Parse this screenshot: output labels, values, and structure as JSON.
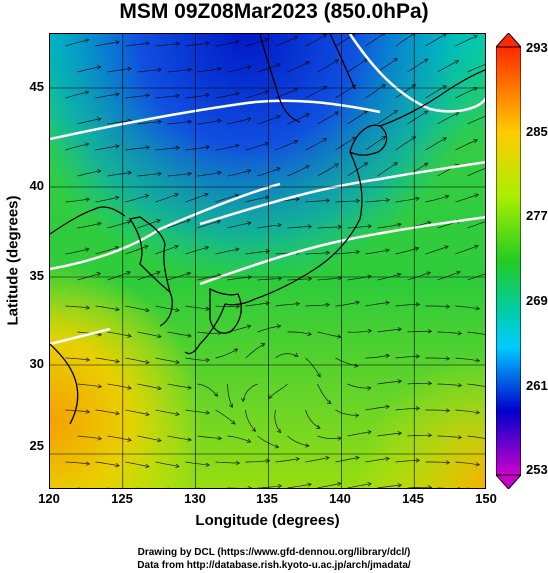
{
  "title": "MSM 09Z08Mar2023 (850.0hPa)",
  "xlabel": "Longitude (degrees)",
  "ylabel": "Latitude  (degrees)",
  "x_ticks": [
    "120",
    "125",
    "130",
    "135",
    "140",
    "145",
    "150"
  ],
  "y_ticks": [
    "45",
    "40",
    "35",
    "30",
    "25"
  ],
  "colorbar": {
    "labels": [
      "293",
      "285",
      "277",
      "269",
      "261",
      "253"
    ],
    "colors": [
      "#ff2a00",
      "#ffcc00",
      "#22cc22",
      "#00ccff",
      "#0000cc",
      "#cc00cc"
    ]
  },
  "credits": {
    "line1": "Drawing by DCL (https://www.gfd-dennou.org/library/dcl/)",
    "line2": "Data from http://database.rish.kyoto-u.ac.jp/arch/jmadata/"
  },
  "map": {
    "lon_range": [
      120,
      150
    ],
    "lat_range": [
      22.5,
      48
    ],
    "gridlines": true,
    "field_colors": {
      "warm": "#f5a000",
      "yellow": "#e8e800",
      "green": "#2ecc3a",
      "cyan": "#00c8b4",
      "blue": "#1050e0",
      "deep_blue": "#0018c8"
    }
  }
}
